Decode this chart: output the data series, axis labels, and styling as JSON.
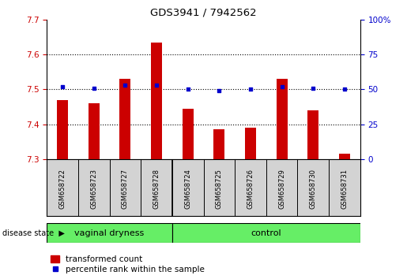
{
  "title": "GDS3941 / 7942562",
  "samples": [
    "GSM658722",
    "GSM658723",
    "GSM658727",
    "GSM658728",
    "GSM658724",
    "GSM658725",
    "GSM658726",
    "GSM658729",
    "GSM658730",
    "GSM658731"
  ],
  "red_values": [
    7.47,
    7.46,
    7.53,
    7.635,
    7.445,
    7.385,
    7.39,
    7.53,
    7.44,
    7.315
  ],
  "blue_values": [
    52,
    51,
    53,
    53,
    50,
    49,
    50,
    52,
    51,
    50
  ],
  "ylim_left": [
    7.3,
    7.7
  ],
  "ylim_right": [
    0,
    100
  ],
  "yticks_left": [
    7.3,
    7.4,
    7.5,
    7.6,
    7.7
  ],
  "yticks_right": [
    0,
    25,
    50,
    75,
    100
  ],
  "bar_color": "#cc0000",
  "dot_color": "#0000cc",
  "bar_width": 0.35,
  "tick_color_left": "#cc0000",
  "tick_color_right": "#0000cc",
  "sample_box_color": "#d3d3d3",
  "group_color": "#66ee66",
  "legend_red_label": "transformed count",
  "legend_blue_label": "percentile rank within the sample",
  "disease_state_label": "disease state",
  "vaginal_dryness_label": "vaginal dryness",
  "control_label": "control",
  "vaginal_count": 4,
  "control_count": 6
}
